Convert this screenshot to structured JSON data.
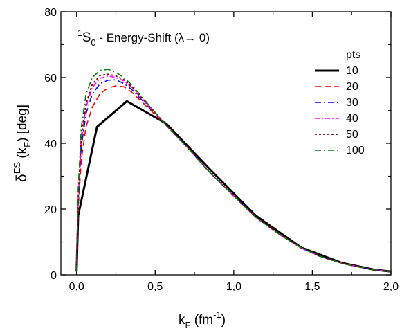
{
  "chart_data": {
    "type": "line",
    "title": "",
    "annotation": {
      "superscript": "1",
      "main": "S",
      "subscript": "0",
      "rest": " - Energy-Shift (λ",
      "arrow": "→",
      "tail": " 0)"
    },
    "xlabel": {
      "main": "k",
      "sub": "F",
      "rest": " (fm",
      "sup": "-1",
      "close": ")"
    },
    "ylabel": {
      "main": "δ",
      "sup": "ES",
      "mid": " (k",
      "sub": "F",
      "close": ") [deg]"
    },
    "xlim": [
      -0.1,
      2.0
    ],
    "ylim": [
      0,
      80
    ],
    "x_ticks": [
      0.0,
      0.5,
      1.0,
      1.5,
      2.0
    ],
    "x_tick_labels": [
      "0,0",
      "0,5",
      "1,0",
      "1,5",
      "2,0"
    ],
    "y_ticks": [
      0,
      20,
      40,
      60,
      80
    ],
    "y_tick_labels": [
      "0",
      "20",
      "40",
      "60",
      "80"
    ],
    "grid": false,
    "legend_title": "pts",
    "legend_position": "right",
    "series": [
      {
        "name": "10",
        "color": "#000000",
        "dash": "solid",
        "width": 3,
        "x": [
          0.0,
          0.01,
          0.13,
          0.32,
          0.57,
          0.85,
          1.14,
          1.43,
          1.69,
          1.89,
          2.0
        ],
        "y": [
          1,
          18,
          45,
          52.8,
          46,
          32,
          18,
          8.3,
          3.6,
          1.6,
          1.0
        ]
      },
      {
        "name": "20",
        "color": "#ff0000",
        "dash": "dashed",
        "width": 1.6,
        "x": [
          0.0,
          0.01,
          0.03,
          0.06,
          0.1,
          0.15,
          0.2,
          0.25,
          0.3,
          0.35,
          0.45,
          0.57,
          0.7,
          0.85,
          1.0,
          1.14,
          1.3,
          1.43,
          1.55,
          1.69,
          1.8,
          1.89,
          2.0
        ],
        "y": [
          1,
          20,
          35,
          45,
          51,
          55.2,
          56.8,
          57.5,
          57.2,
          55.6,
          51,
          45.5,
          39,
          31,
          24,
          17.5,
          12,
          8.2,
          5.6,
          3.5,
          2.4,
          1.6,
          1.0
        ]
      },
      {
        "name": "30",
        "color": "#0000ff",
        "dash": "dashdot",
        "width": 1.6,
        "x": [
          0.0,
          0.01,
          0.03,
          0.06,
          0.1,
          0.15,
          0.2,
          0.25,
          0.3,
          0.35,
          0.45,
          0.57,
          0.7,
          0.85,
          1.0,
          1.14,
          1.3,
          1.43,
          1.55,
          1.69,
          1.8,
          1.89,
          2.0
        ],
        "y": [
          1,
          22,
          39,
          49,
          55,
          58.2,
          59.2,
          59.3,
          58.2,
          56.4,
          51.5,
          45.5,
          39,
          31,
          24,
          17.5,
          12,
          8.2,
          5.6,
          3.5,
          2.4,
          1.6,
          1.0
        ]
      },
      {
        "name": "40",
        "color": "#ff00ff",
        "dash": "dashdotfine",
        "width": 1.6,
        "x": [
          0.0,
          0.01,
          0.03,
          0.06,
          0.1,
          0.15,
          0.2,
          0.25,
          0.3,
          0.35,
          0.45,
          0.57,
          0.7,
          0.85,
          1.0,
          1.14,
          1.3,
          1.43,
          1.55,
          1.69,
          1.8,
          1.89,
          2.0
        ],
        "y": [
          1,
          23,
          41,
          51,
          57,
          59.8,
          60.5,
          60.0,
          59.0,
          57.0,
          51.8,
          45.5,
          39,
          31,
          24,
          17.5,
          12,
          8.2,
          5.6,
          3.5,
          2.4,
          1.6,
          1.0
        ]
      },
      {
        "name": "50",
        "color": "#8b0000",
        "dash": "dotted",
        "width": 1.8,
        "x": [
          0.0,
          0.01,
          0.03,
          0.06,
          0.1,
          0.15,
          0.2,
          0.25,
          0.3,
          0.35,
          0.45,
          0.57,
          0.7,
          0.85,
          1.0,
          1.14,
          1.3,
          1.43,
          1.55,
          1.69,
          1.8,
          1.89,
          2.0
        ],
        "y": [
          1,
          24,
          42,
          52,
          58,
          60.6,
          61.0,
          60.5,
          59.4,
          57.3,
          52,
          45.5,
          39,
          31,
          24,
          17.5,
          12,
          8.2,
          5.6,
          3.5,
          2.4,
          1.6,
          1.0
        ]
      },
      {
        "name": "100",
        "color": "#008000",
        "dash": "dashdot",
        "width": 1.6,
        "x": [
          0.0,
          0.01,
          0.03,
          0.06,
          0.1,
          0.15,
          0.2,
          0.25,
          0.3,
          0.35,
          0.45,
          0.57,
          0.7,
          0.85,
          1.0,
          1.14,
          1.3,
          1.43,
          1.55,
          1.69,
          1.8,
          1.89,
          2.0
        ],
        "y": [
          1,
          26,
          45,
          55,
          60,
          62.2,
          62.5,
          61.6,
          60.0,
          57.8,
          52.2,
          45.5,
          39,
          31,
          24,
          17.5,
          12,
          8.2,
          5.6,
          3.5,
          2.4,
          1.6,
          1.0
        ]
      }
    ]
  }
}
